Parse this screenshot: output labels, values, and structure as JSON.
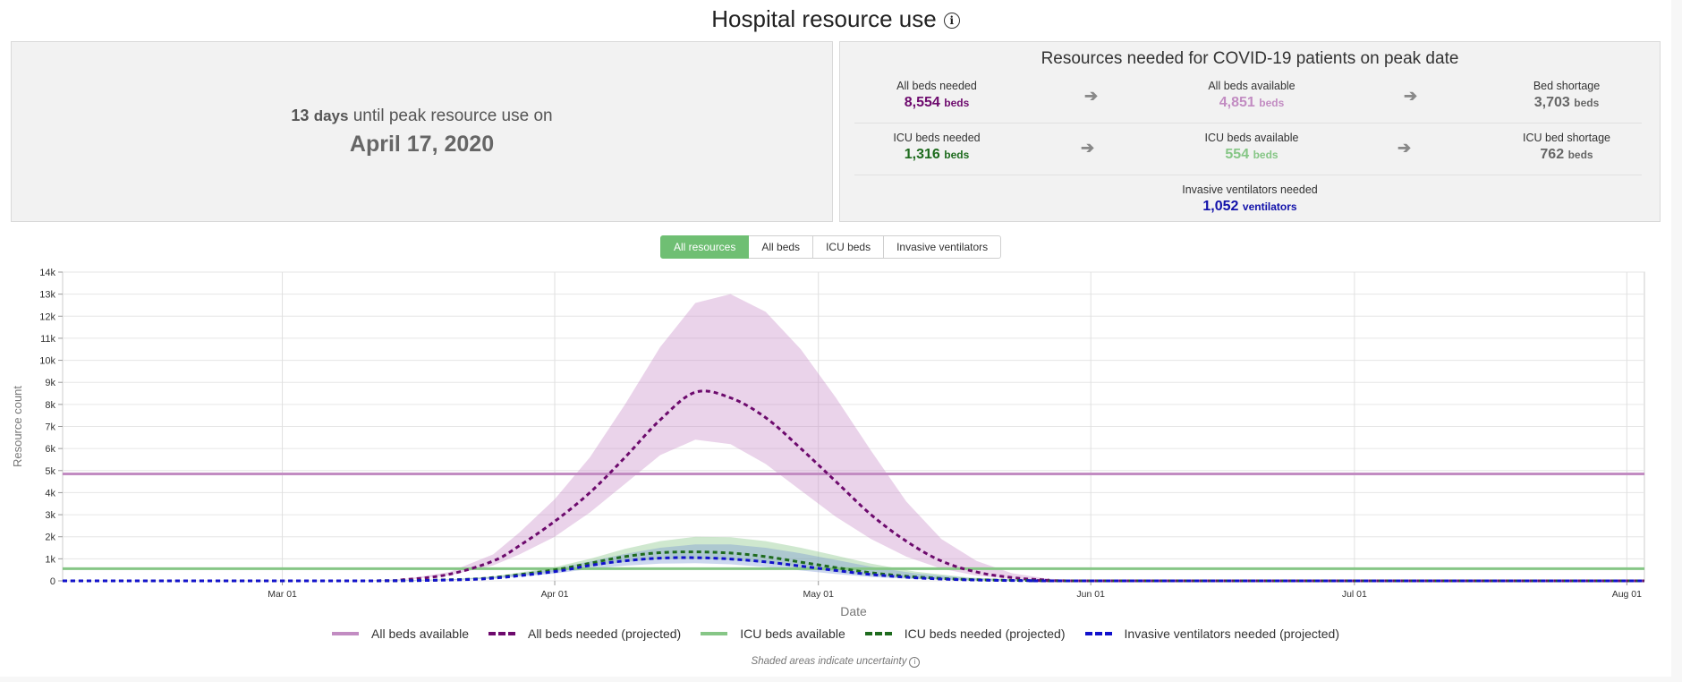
{
  "header": {
    "title": "Hospital resource use",
    "info_icon": "info-icon"
  },
  "peak_panel": {
    "days_number": "13",
    "days_unit": "days",
    "until_text": "until peak resource use on",
    "peak_date": "April 17, 2020"
  },
  "resources_panel": {
    "title": "Resources needed for COVID-19 patients on peak date",
    "rows": [
      [
        {
          "label": "All beds needed",
          "value": "8,554",
          "unit": "beds",
          "color": "#6d0a6d"
        },
        {
          "label": "All beds available",
          "value": "4,851",
          "unit": "beds",
          "color": "#c28cc2"
        },
        {
          "label": "Bed shortage",
          "value": "3,703",
          "unit": "beds",
          "color": "#666666"
        }
      ],
      [
        {
          "label": "ICU beds needed",
          "value": "1,316",
          "unit": "beds",
          "color": "#1e6b1e"
        },
        {
          "label": "ICU beds available",
          "value": "554",
          "unit": "beds",
          "color": "#86c686"
        },
        {
          "label": "ICU bed shortage",
          "value": "762",
          "unit": "beds",
          "color": "#666666"
        }
      ],
      [
        {
          "label": "Invasive ventilators needed",
          "value": "1,052",
          "unit": "ventilators",
          "color": "#1111aa"
        }
      ]
    ],
    "arrow_icon": "arrow-right-icon"
  },
  "tabs": [
    {
      "label": "All resources",
      "active": true
    },
    {
      "label": "All beds",
      "active": false
    },
    {
      "label": "ICU beds",
      "active": false
    },
    {
      "label": "Invasive ventilators",
      "active": false
    }
  ],
  "chart_data": {
    "type": "line",
    "xlabel": "Date",
    "ylabel": "Resource count",
    "xlim": [
      "2020-02-05",
      "2020-08-03"
    ],
    "ylim": [
      0,
      14000
    ],
    "yticks": [
      0,
      1000,
      2000,
      3000,
      4000,
      5000,
      6000,
      7000,
      8000,
      9000,
      10000,
      11000,
      12000,
      13000,
      14000
    ],
    "ytick_labels": [
      "0",
      "1k",
      "2k",
      "3k",
      "4k",
      "5k",
      "6k",
      "7k",
      "8k",
      "9k",
      "10k",
      "11k",
      "12k",
      "13k",
      "14k"
    ],
    "xticks": [
      "2020-03-01",
      "2020-04-01",
      "2020-05-01",
      "2020-06-01",
      "2020-07-01",
      "2020-08-01"
    ],
    "xtick_labels": [
      "Mar 01",
      "Apr 01",
      "May 01",
      "Jun 01",
      "Jul 01",
      "Aug 01"
    ],
    "grid": true,
    "legend_position": "bottom",
    "series": [
      {
        "name": "All beds available",
        "style": "solid",
        "color": "#c28cc2",
        "x": [
          "2020-02-05",
          "2020-08-03"
        ],
        "y": [
          4851,
          4851
        ]
      },
      {
        "name": "All beds needed (projected)",
        "style": "dashed",
        "color": "#6d0a6d",
        "x": [
          "2020-02-05",
          "2020-03-10",
          "2020-03-15",
          "2020-03-20",
          "2020-03-25",
          "2020-03-28",
          "2020-04-01",
          "2020-04-05",
          "2020-04-09",
          "2020-04-13",
          "2020-04-17",
          "2020-04-21",
          "2020-04-25",
          "2020-04-29",
          "2020-05-03",
          "2020-05-07",
          "2020-05-11",
          "2020-05-15",
          "2020-05-19",
          "2020-05-23",
          "2020-05-27",
          "2020-06-01",
          "2020-08-03"
        ],
        "y": [
          0,
          0,
          60,
          300,
          900,
          1600,
          2700,
          4000,
          5600,
          7300,
          8554,
          8300,
          7400,
          6000,
          4500,
          3000,
          1800,
          900,
          400,
          150,
          40,
          0,
          0
        ],
        "upper": [
          0,
          0,
          80,
          400,
          1200,
          2200,
          3700,
          5600,
          8000,
          10600,
          12600,
          13000,
          12200,
          10500,
          8300,
          5900,
          3600,
          1900,
          900,
          350,
          100,
          0,
          0
        ],
        "lower": [
          0,
          0,
          50,
          250,
          700,
          1200,
          2000,
          3100,
          4400,
          5700,
          6400,
          6200,
          5300,
          4100,
          2900,
          1900,
          1100,
          550,
          240,
          90,
          20,
          0,
          0
        ]
      },
      {
        "name": "ICU beds available",
        "style": "solid",
        "color": "#86c686",
        "x": [
          "2020-02-05",
          "2020-08-03"
        ],
        "y": [
          554,
          554
        ]
      },
      {
        "name": "ICU beds needed (projected)",
        "style": "dashed",
        "color": "#1e6b1e",
        "x": [
          "2020-02-05",
          "2020-03-10",
          "2020-03-20",
          "2020-03-25",
          "2020-04-01",
          "2020-04-05",
          "2020-04-09",
          "2020-04-13",
          "2020-04-17",
          "2020-04-21",
          "2020-04-25",
          "2020-04-29",
          "2020-05-03",
          "2020-05-07",
          "2020-05-12",
          "2020-05-18",
          "2020-05-25",
          "2020-06-01",
          "2020-08-03"
        ],
        "y": [
          0,
          0,
          50,
          150,
          500,
          800,
          1100,
          1280,
          1316,
          1260,
          1100,
          850,
          600,
          370,
          180,
          60,
          15,
          0,
          0
        ],
        "upper": [
          0,
          0,
          70,
          200,
          620,
          1000,
          1450,
          1800,
          2000,
          1980,
          1800,
          1500,
          1150,
          780,
          420,
          160,
          40,
          0,
          0
        ],
        "lower": [
          0,
          0,
          40,
          120,
          400,
          650,
          860,
          980,
          1000,
          950,
          800,
          600,
          400,
          230,
          100,
          30,
          5,
          0,
          0
        ]
      },
      {
        "name": "Invasive ventilators needed (projected)",
        "style": "dashed",
        "color": "#1111cc",
        "x": [
          "2020-02-05",
          "2020-03-10",
          "2020-03-20",
          "2020-03-25",
          "2020-04-01",
          "2020-04-05",
          "2020-04-09",
          "2020-04-13",
          "2020-04-17",
          "2020-04-21",
          "2020-04-25",
          "2020-04-29",
          "2020-05-03",
          "2020-05-07",
          "2020-05-12",
          "2020-05-18",
          "2020-05-25",
          "2020-06-01",
          "2020-08-03"
        ],
        "y": [
          0,
          0,
          40,
          120,
          420,
          700,
          910,
          1030,
          1052,
          990,
          860,
          670,
          470,
          290,
          140,
          45,
          10,
          0,
          0
        ],
        "upper": [
          0,
          0,
          60,
          170,
          550,
          880,
          1220,
          1500,
          1650,
          1650,
          1500,
          1250,
          950,
          640,
          340,
          130,
          30,
          0,
          0
        ],
        "lower": [
          0,
          0,
          30,
          95,
          330,
          540,
          690,
          780,
          800,
          750,
          630,
          470,
          310,
          180,
          80,
          25,
          5,
          0,
          0
        ]
      }
    ]
  },
  "footnote": {
    "text": "Shaded areas indicate uncertainty",
    "icon": "info-icon"
  }
}
